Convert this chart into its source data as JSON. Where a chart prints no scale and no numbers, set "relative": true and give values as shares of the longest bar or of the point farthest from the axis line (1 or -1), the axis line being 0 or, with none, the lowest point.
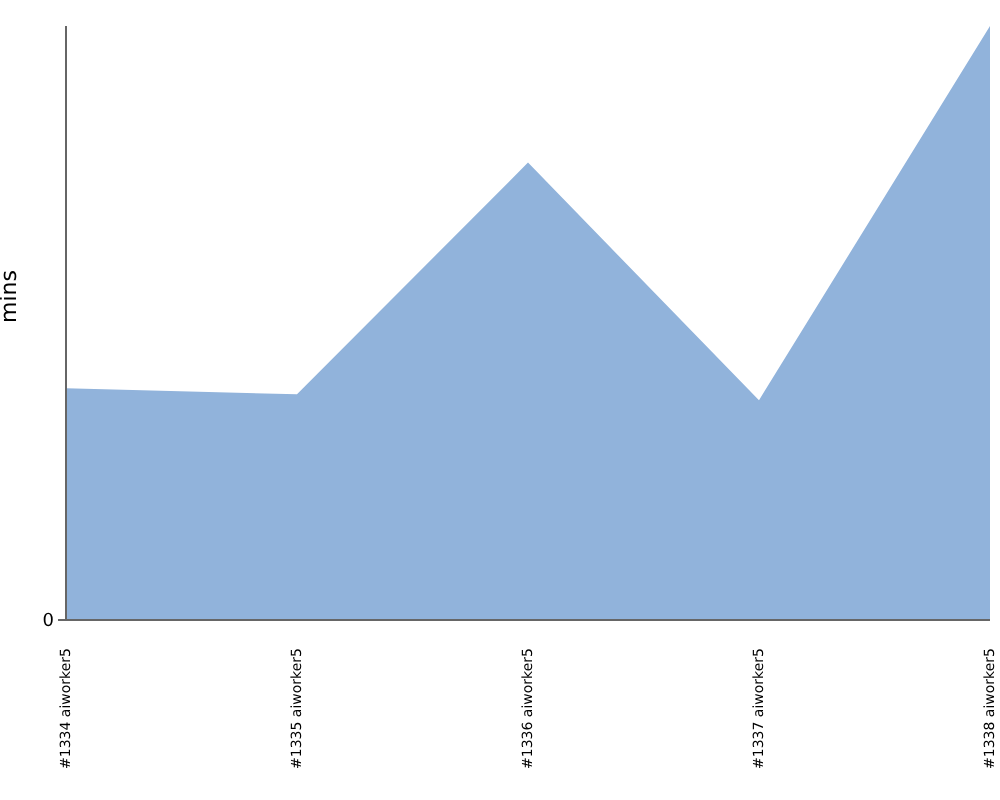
{
  "chart_data": {
    "type": "area",
    "ylabel": "mins",
    "relative": true,
    "annotations": [
      "0"
    ],
    "categories": [
      "#1334 aiworker5",
      "#1335 aiworker5",
      "#1336 aiworker5",
      "#1337 aiworker5",
      "#1338 aiworker5"
    ],
    "series": [
      {
        "color": "#91b3db",
        "values": [
          0.39,
          0.38,
          0.77,
          0.37,
          1
        ]
      }
    ],
    "grid": false,
    "legend": false
  }
}
